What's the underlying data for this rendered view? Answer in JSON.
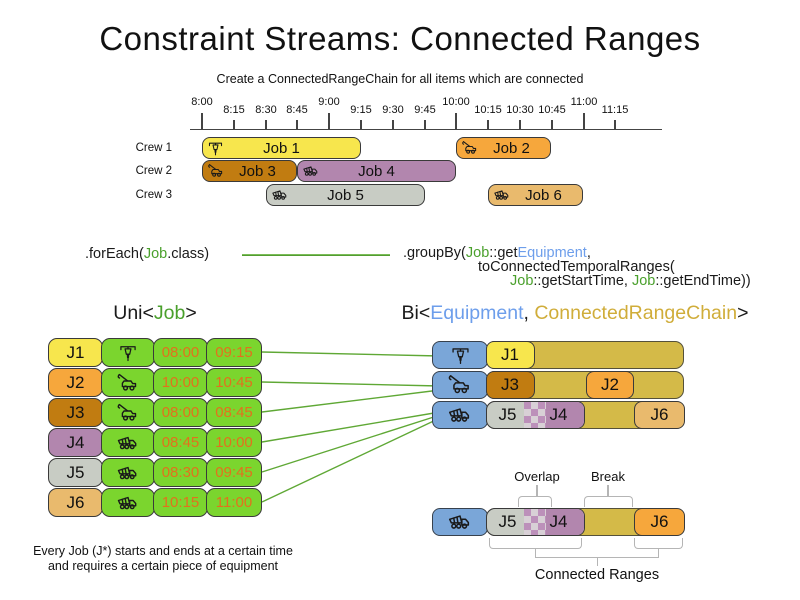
{
  "title": "Constraint Streams: Connected Ranges",
  "subtitle": "Create a ConnectedRangeChain for all items which are connected",
  "colors": {
    "yellow": "#f7e64d",
    "orange": "#f6a73c",
    "dark_orange": "#c17c11",
    "purple": "#b286ae",
    "gray": "#c8ccc4",
    "tan": "#e9ba6d",
    "green_cell": "#7bd52e",
    "equipment_blue": "#7aa6d8",
    "chain_gold": "#d4ba48",
    "time_text_orange": "#e2711d",
    "connector_green": "#5aa62f",
    "code_job_green": "#4aa02c",
    "code_equipment_blue": "#6d9eeb",
    "code_chain_gold": "#d0ad3a",
    "checker_purple": "#bc90ba",
    "checker_light": "#d8d0d6"
  },
  "timeline": {
    "ticks": [
      {
        "label": "8:00",
        "major": true
      },
      {
        "label": "8:15"
      },
      {
        "label": "8:30"
      },
      {
        "label": "8:45"
      },
      {
        "label": "9:00",
        "major": true
      },
      {
        "label": "9:15"
      },
      {
        "label": "9:30"
      },
      {
        "label": "9:45"
      },
      {
        "label": "10:00",
        "major": true
      },
      {
        "label": "10:15"
      },
      {
        "label": "10:30"
      },
      {
        "label": "10:45"
      },
      {
        "label": "11:00",
        "major": true
      },
      {
        "label": "11:15"
      }
    ]
  },
  "crews": [
    "Crew 1",
    "Crew 2",
    "Crew 3"
  ],
  "schedule": [
    {
      "job": "Job 1",
      "crew": "Crew 1",
      "start": "8:00",
      "end": "9:15",
      "equipment": "jackhammer"
    },
    {
      "job": "Job 2",
      "crew": "Crew 1",
      "start": "10:00",
      "end": "10:45",
      "equipment": "crane-truck"
    },
    {
      "job": "Job 3",
      "crew": "Crew 2",
      "start": "8:00",
      "end": "8:45",
      "equipment": "crane-truck"
    },
    {
      "job": "Job 4",
      "crew": "Crew 2",
      "start": "8:45",
      "end": "10:00",
      "equipment": "dump-truck"
    },
    {
      "job": "Job 5",
      "crew": "Crew 3",
      "start": "8:30",
      "end": "9:45",
      "equipment": "dump-truck"
    },
    {
      "job": "Job 6",
      "crew": "Crew 3",
      "start": "10:15",
      "end": "11:00",
      "equipment": "dump-truck"
    }
  ],
  "code": {
    "foreach": [
      {
        "t": ".forEach(",
        "c": "k"
      },
      {
        "t": "Job",
        "c": "g"
      },
      {
        "t": ".class)",
        "c": "k"
      }
    ],
    "groupby1": [
      {
        "t": ".groupBy(",
        "c": "k"
      },
      {
        "t": "Job",
        "c": "g"
      },
      {
        "t": "::get",
        "c": "k"
      },
      {
        "t": "Equipment",
        "c": "b"
      },
      {
        "t": ",",
        "c": "k"
      }
    ],
    "groupby2": [
      {
        "t": "toConnectedTemporalRanges(",
        "c": "k"
      }
    ],
    "groupby3": [
      {
        "t": "Job",
        "c": "g"
      },
      {
        "t": "::getStartTime, ",
        "c": "k"
      },
      {
        "t": "Job",
        "c": "g"
      },
      {
        "t": "::getEndTime))",
        "c": "k"
      }
    ]
  },
  "uni": {
    "heading": [
      {
        "t": "Uni<",
        "c": "k"
      },
      {
        "t": "Job",
        "c": "g"
      },
      {
        "t": ">",
        "c": "k"
      }
    ],
    "rows": [
      {
        "id": "J1",
        "equipment": "jackhammer",
        "start": "08:00",
        "end": "09:15"
      },
      {
        "id": "J2",
        "equipment": "crane-truck",
        "start": "10:00",
        "end": "10:45"
      },
      {
        "id": "J3",
        "equipment": "crane-truck",
        "start": "08:00",
        "end": "08:45"
      },
      {
        "id": "J4",
        "equipment": "dump-truck",
        "start": "08:45",
        "end": "10:00"
      },
      {
        "id": "J5",
        "equipment": "dump-truck",
        "start": "08:30",
        "end": "09:45"
      },
      {
        "id": "J6",
        "equipment": "dump-truck",
        "start": "10:15",
        "end": "11:00"
      }
    ]
  },
  "bi": {
    "heading": [
      {
        "t": "Bi<",
        "c": "k"
      },
      {
        "t": "Equipment",
        "c": "b"
      },
      {
        "t": ", ",
        "c": "k"
      },
      {
        "t": "ConnectedRangeChain",
        "c": "y"
      },
      {
        "t": ">",
        "c": "k"
      }
    ],
    "rows": [
      {
        "equipment": "jackhammer",
        "jobs": [
          "J1"
        ]
      },
      {
        "equipment": "crane-truck",
        "jobs": [
          "J3",
          "J2"
        ]
      },
      {
        "equipment": "dump-truck",
        "jobs": [
          "J5",
          "J4",
          "J6"
        ]
      }
    ]
  },
  "detail": {
    "equipment": "dump-truck",
    "overlap_label": "Overlap",
    "break_label": "Break",
    "connected_label": "Connected Ranges",
    "jobs": [
      "J5",
      "J4",
      "J6"
    ]
  },
  "footer": {
    "line1": "Every Job (J*) starts and ends at a certain time",
    "line2": "and requires a certain piece of equipment"
  }
}
